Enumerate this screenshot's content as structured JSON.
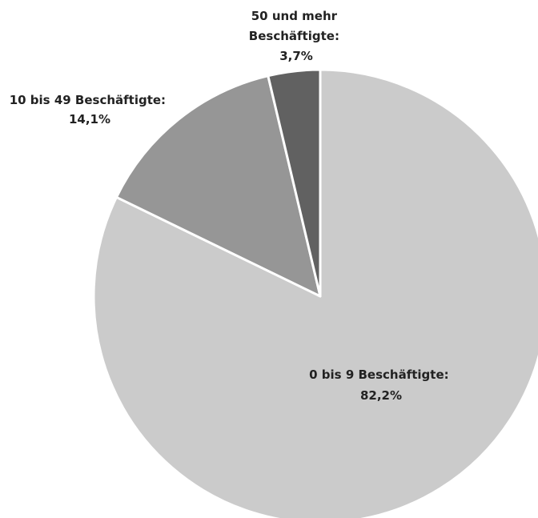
{
  "chart_data": {
    "type": "pie",
    "slices": [
      {
        "label": "0 bis 9 Beschäftigte:",
        "value_label": "82,2%",
        "value": 82.2,
        "color": "#cbcbcb"
      },
      {
        "label": "10 bis 49 Beschäftigte:",
        "value_label": "14,1%",
        "value": 14.1,
        "color": "#969696"
      },
      {
        "label": "50 und mehr Beschäftigte:",
        "label_lines": [
          "50 und mehr",
          "Beschäftigte:"
        ],
        "value_label": "3,7%",
        "value": 3.7,
        "color": "#616161"
      }
    ],
    "start": "12 o'clock",
    "direction": "clockwise",
    "legend": "none",
    "data_labels": "outside/inside slice"
  }
}
